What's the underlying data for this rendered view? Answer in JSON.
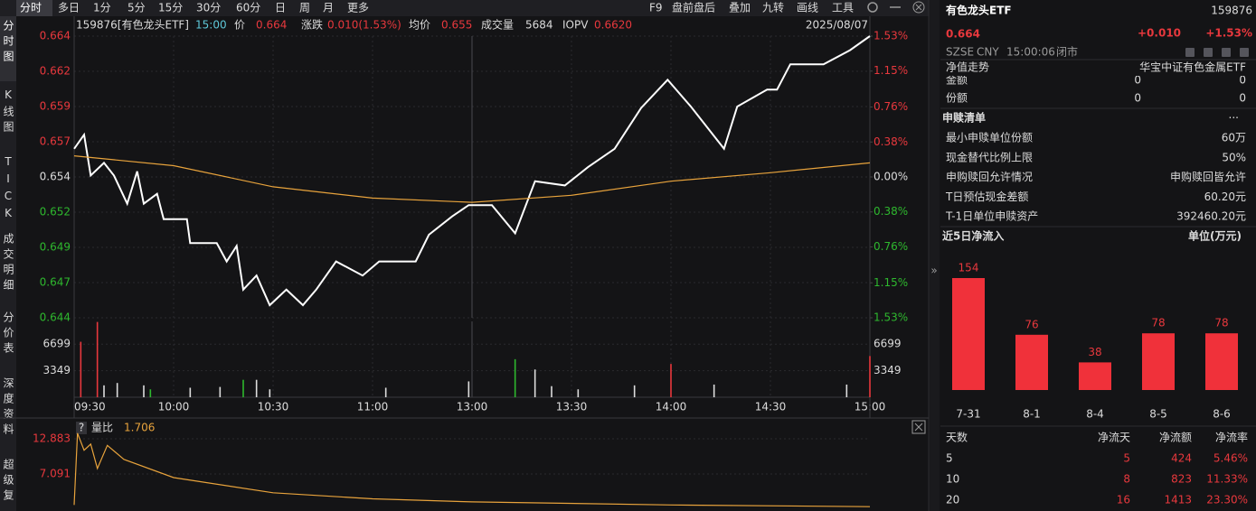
{
  "toolbar": {
    "tabs": [
      "分时",
      "多日",
      "1分",
      "5分",
      "15分",
      "30分",
      "60分",
      "日",
      "周",
      "月",
      "更多"
    ],
    "tools": [
      "F9",
      "盘前盘后",
      "叠加",
      "九转",
      "画线",
      "工具"
    ]
  },
  "side_tabs": [
    "分时图",
    "K线图",
    "TICK",
    "成交明细",
    "分价表",
    "深度资料",
    "超级复"
  ],
  "info_bar": {
    "code": "159876[有色龙头ETF]",
    "time": "15:00",
    "items": [
      {
        "label": "价",
        "value": "0.664"
      },
      {
        "label": "涨跌",
        "value": "0.010(1.53%)"
      },
      {
        "label": "均价",
        "value": "0.655"
      },
      {
        "label": "成交量",
        "value": "5684"
      },
      {
        "label": "IOPV",
        "value": "0.6620"
      }
    ],
    "date": "2025/08/07"
  },
  "chart_data": [
    {
      "type": "line",
      "xlim": [
        0,
        240
      ],
      "ylim": [
        0.644,
        0.664
      ],
      "yticks": [
        0.644,
        {
          "value": 0.6465,
          "label": "0.647"
        },
        0.649,
        {
          "value": 0.6515,
          "label": "0.652"
        },
        0.654,
        {
          "value": 0.6565,
          "label": "0.657"
        },
        0.659,
        {
          "value": 0.6615,
          "label": "0.662"
        },
        0.664
      ],
      "y2lim": [
        -1.53,
        1.53
      ],
      "y2ticks": [
        {
          "value": -1.53,
          "label": "1.53%"
        },
        {
          "value": -1.15,
          "label": "1.15%"
        },
        {
          "value": -0.76,
          "label": "0.76%"
        },
        {
          "value": -0.38,
          "label": "0.38%"
        },
        {
          "value": 0,
          "label": "0.00%"
        },
        {
          "value": 0.38,
          "label": "0.38%"
        },
        {
          "value": 0.76,
          "label": "0.76%"
        },
        {
          "value": 1.15,
          "label": "1.15%"
        },
        {
          "value": 1.53,
          "label": "1.53%"
        }
      ],
      "grid": true,
      "series": [
        {
          "color": "#ffffff",
          "x": [
            0,
            3,
            5,
            9,
            12,
            16,
            19,
            21,
            25,
            27,
            34,
            35,
            43,
            46,
            49,
            51,
            55,
            59,
            64,
            69,
            73,
            79,
            87,
            92,
            103,
            107,
            114,
            119,
            126,
            133,
            139,
            148,
            155,
            163,
            171,
            179,
            186,
            196,
            200,
            209,
            212,
            216,
            226,
            234,
            240
          ],
          "values": [
            0.656,
            0.657,
            0.6541,
            0.655,
            0.6541,
            0.6521,
            0.6544,
            0.6521,
            0.6528,
            0.651,
            0.651,
            0.6493,
            0.6493,
            0.648,
            0.6491,
            0.646,
            0.647,
            0.6449,
            0.646,
            0.6449,
            0.646,
            0.648,
            0.647,
            0.648,
            0.648,
            0.6499,
            0.6512,
            0.652,
            0.652,
            0.65,
            0.6537,
            0.6534,
            0.6547,
            0.656,
            0.6589,
            0.6609,
            0.659,
            0.656,
            0.659,
            0.6602,
            0.6602,
            0.662,
            0.662,
            0.663,
            0.664
          ]
        },
        {
          "color": "#e8a33c",
          "x": [
            0,
            30,
            60,
            90,
            120,
            150,
            180,
            210,
            240
          ],
          "values": [
            0.6555,
            0.6548,
            0.6533,
            0.6525,
            0.6522,
            0.6527,
            0.6537,
            0.6543,
            0.655
          ]
        }
      ]
    },
    {
      "type": "bar",
      "xlim": [
        0,
        240
      ],
      "xticks": [
        {
          "value": 0,
          "label": "09:30"
        },
        {
          "value": 30,
          "label": "10:00"
        },
        {
          "value": 60,
          "label": "10:30"
        },
        {
          "value": 90,
          "label": "11:00"
        },
        {
          "value": 120,
          "label": "13:00"
        },
        {
          "value": 150,
          "label": "13:30"
        },
        {
          "value": 180,
          "label": "14:00"
        },
        {
          "value": 210,
          "label": "14:30"
        },
        {
          "value": 240,
          "label": "15:00"
        }
      ],
      "ylim": [
        0,
        9570
      ],
      "yticks": [
        3349,
        6699
      ],
      "x": [
        2,
        7,
        9,
        13,
        21,
        23,
        35,
        44,
        51,
        55,
        59,
        94,
        119,
        133,
        139,
        144,
        152,
        169,
        180,
        193,
        233,
        240
      ],
      "values": [
        7000,
        9500,
        1500,
        1800,
        1500,
        1000,
        1200,
        1300,
        2200,
        2200,
        1000,
        1200,
        2000,
        4800,
        3500,
        1400,
        1000,
        1500,
        4200,
        1600,
        1600,
        5200
      ],
      "colors": [
        "#e8383d",
        "#e8383d",
        "#dddddd",
        "#dddddd",
        "#dddddd",
        "#2eb82e",
        "#dddddd",
        "#dddddd",
        "#2eb82e",
        "#dddddd",
        "#dddddd",
        "#dddddd",
        "#dddddd",
        "#2eb82e",
        "#dddddd",
        "#dddddd",
        "#dddddd",
        "#dddddd",
        "#e8383d",
        "#dddddd",
        "#dddddd",
        "#e8383d"
      ]
    },
    {
      "type": "line",
      "title": "量比",
      "value": 1.706,
      "xlim": [
        0,
        240
      ],
      "ylim": [
        1,
        15.26
      ],
      "yticks": [
        7.091,
        12.883
      ],
      "series": [
        {
          "color": "#e8a33c",
          "x": [
            0,
            1,
            3,
            5,
            7,
            10,
            15,
            30,
            60,
            90,
            120,
            180,
            240
          ],
          "values": [
            2,
            13.8,
            11,
            12,
            8,
            11.8,
            9.5,
            6.5,
            4,
            3,
            2.5,
            2,
            1.706
          ]
        }
      ]
    },
    {
      "type": "bar",
      "title": "近5日净流入",
      "unit": "单位(万元)",
      "categories": [
        "7-31",
        "8-1",
        "8-4",
        "8-5",
        "8-6"
      ],
      "values": [
        154,
        76,
        38,
        78,
        78
      ],
      "color": "#f0313a"
    }
  ],
  "quote": {
    "name": "有色龙头ETF",
    "code": "159876",
    "price": "0.664",
    "change": "+0.010",
    "change_pct": "+1.53%",
    "exchange": "SZSE",
    "currency": "CNY",
    "time": "15:00:06",
    "status": "闭市"
  },
  "nav": {
    "title": "净值走势",
    "fund": "华宝中证有色金属ETF",
    "rows": [
      [
        "金额",
        "0",
        "0"
      ],
      [
        "份额",
        "0",
        "0"
      ]
    ]
  },
  "redemption": {
    "title": "申赎清单",
    "more": "···",
    "rows": [
      [
        "最小申赎单位份额",
        "60万"
      ],
      [
        "现金替代比例上限",
        "50%"
      ],
      [
        "申购赎回允许情况",
        "申购赎回皆允许"
      ],
      [
        "T日预估现金差额",
        "60.20元"
      ],
      [
        "T-1日单位申赎资产",
        "392460.20元"
      ]
    ]
  },
  "flow_table": {
    "header": [
      "天数",
      "净流天",
      "净流额",
      "净流率"
    ],
    "rows": [
      [
        "5",
        "5",
        "424",
        "5.46%"
      ],
      [
        "10",
        "8",
        "823",
        "11.33%"
      ],
      [
        "20",
        "16",
        "1413",
        "23.30%"
      ]
    ]
  }
}
